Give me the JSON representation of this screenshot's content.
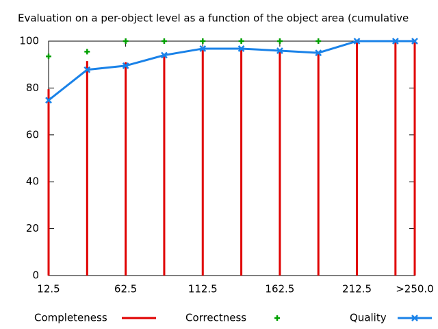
{
  "chart_data": {
    "type": "line",
    "title": "Evaluation on a per-object level as a function of the object area (cumulative",
    "x": [
      12.5,
      37.5,
      62.5,
      87.5,
      112.5,
      137.5,
      162.5,
      187.5,
      212.5,
      237.5,
      250
    ],
    "xlim": [
      12.5,
      250
    ],
    "xticks": [
      12.5,
      62.5,
      112.5,
      162.5,
      212.5,
      {
        "value": 250,
        "label": ">250.0"
      }
    ],
    "ylim": [
      0,
      100
    ],
    "yticks": [
      0,
      20,
      40,
      60,
      80,
      100
    ],
    "series": [
      {
        "name": "Completeness",
        "color": "#e00000",
        "style": "impulses",
        "values": [
          79.5,
          91.5,
          91,
          94,
          97,
          97,
          96,
          95,
          100,
          100,
          100
        ]
      },
      {
        "name": "Correctness",
        "color": "#00a000",
        "style": "points",
        "values": [
          93.5,
          95.5,
          100,
          100,
          100,
          100,
          100,
          100,
          null,
          null,
          null
        ]
      },
      {
        "name": "Quality",
        "color": "#1a82e8",
        "style": "linespoints",
        "values": [
          74.8,
          87.8,
          89.5,
          94,
          96.8,
          96.8,
          95.9,
          95,
          100,
          100,
          100
        ]
      }
    ]
  }
}
